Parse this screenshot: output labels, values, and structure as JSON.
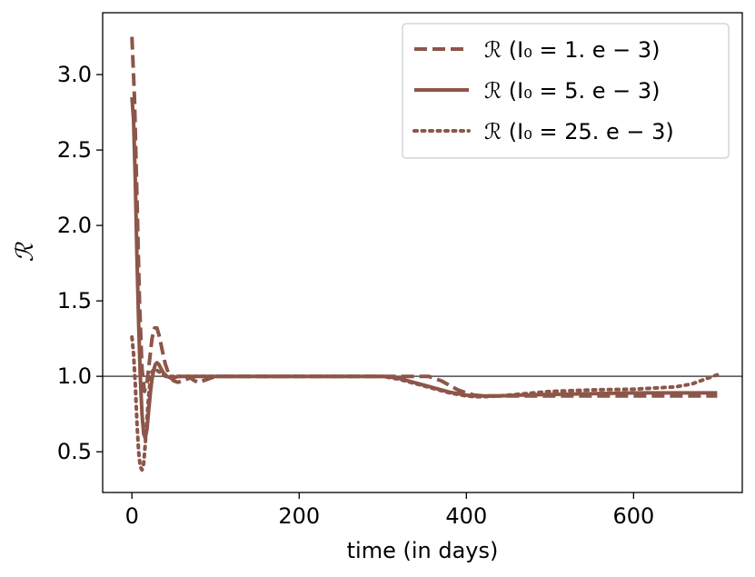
{
  "chart_data": {
    "type": "line",
    "xlabel": "time (in days)",
    "ylabel": "ℛ",
    "xlim": [
      -35,
      730
    ],
    "ylim": [
      0.23,
      3.41
    ],
    "xticks": [
      0,
      200,
      400,
      600
    ],
    "xtick_labels": [
      "0",
      "200",
      "400",
      "600"
    ],
    "yticks": [
      0.5,
      1.0,
      1.5,
      2.0,
      2.5,
      3.0
    ],
    "ytick_labels": [
      "0.5",
      "1.0",
      "1.5",
      "2.0",
      "2.5",
      "3.0"
    ],
    "reference_line": {
      "y": 1.0,
      "color": "#4d4d4d"
    },
    "grid": false,
    "legend_position": "top-right",
    "color": "#8c5649",
    "series": [
      {
        "name": "ℛ (I₀ = 1. e − 3)",
        "style": "dashed",
        "x": [
          0,
          3,
          6,
          9,
          12,
          15,
          18,
          21,
          24,
          27,
          30,
          33,
          36,
          40,
          45,
          50,
          55,
          60,
          65,
          70,
          75,
          80,
          90,
          100,
          120,
          150,
          200,
          250,
          300,
          320,
          330,
          340,
          350,
          355,
          360,
          370,
          380,
          390,
          400,
          410,
          420,
          430,
          440,
          460,
          500,
          550,
          600,
          650,
          700
        ],
        "y": [
          3.25,
          2.85,
          2.2,
          1.5,
          1.05,
          0.9,
          0.96,
          1.1,
          1.25,
          1.32,
          1.32,
          1.26,
          1.18,
          1.08,
          1.0,
          0.97,
          0.96,
          0.97,
          0.98,
          0.99,
          0.97,
          0.96,
          0.98,
          1.0,
          1.0,
          1.0,
          1.0,
          1.0,
          1.0,
          1.0,
          1.0,
          1.0,
          1.0,
          1.0,
          0.99,
          0.97,
          0.94,
          0.91,
          0.89,
          0.875,
          0.87,
          0.87,
          0.87,
          0.87,
          0.87,
          0.87,
          0.87,
          0.87,
          0.87
        ]
      },
      {
        "name": "ℛ (I₀ = 5. e − 3)",
        "style": "solid",
        "x": [
          0,
          2,
          4,
          6,
          8,
          10,
          12,
          14,
          16,
          18,
          20,
          22,
          24,
          26,
          28,
          30,
          32,
          35,
          38,
          42,
          46,
          50,
          55,
          60,
          70,
          80,
          100,
          150,
          200,
          250,
          300,
          310,
          320,
          330,
          340,
          350,
          360,
          370,
          380,
          390,
          400,
          410,
          420,
          430,
          440,
          460,
          500,
          550,
          600,
          650,
          700
        ],
        "y": [
          2.85,
          2.7,
          2.3,
          1.8,
          1.35,
          1.0,
          0.75,
          0.62,
          0.59,
          0.65,
          0.77,
          0.89,
          0.98,
          1.04,
          1.08,
          1.09,
          1.08,
          1.05,
          1.02,
          1.0,
          0.99,
          0.99,
          1.0,
          1.0,
          1.0,
          1.0,
          1.0,
          1.0,
          1.0,
          1.0,
          1.0,
          0.995,
          0.985,
          0.97,
          0.955,
          0.94,
          0.925,
          0.91,
          0.895,
          0.885,
          0.875,
          0.87,
          0.87,
          0.87,
          0.87,
          0.875,
          0.88,
          0.885,
          0.89,
          0.89,
          0.89
        ]
      },
      {
        "name": "ℛ (I₀ = 25. e − 3)",
        "style": "dotted",
        "x": [
          0,
          2,
          4,
          6,
          8,
          10,
          12,
          14,
          16,
          18,
          20,
          22,
          24,
          27,
          30,
          35,
          40,
          50,
          60,
          80,
          100,
          150,
          200,
          250,
          300,
          310,
          320,
          330,
          340,
          350,
          360,
          370,
          380,
          390,
          400,
          410,
          420,
          440,
          460,
          500,
          550,
          600,
          650,
          670,
          680,
          690,
          700
        ],
        "y": [
          1.26,
          1.15,
          0.95,
          0.7,
          0.5,
          0.4,
          0.38,
          0.42,
          0.55,
          0.72,
          0.87,
          0.98,
          1.03,
          1.05,
          1.04,
          1.02,
          1.0,
          1.0,
          1.0,
          1.0,
          1.0,
          1.0,
          1.0,
          1.0,
          1.0,
          0.99,
          0.98,
          0.965,
          0.95,
          0.935,
          0.92,
          0.905,
          0.89,
          0.88,
          0.87,
          0.865,
          0.865,
          0.87,
          0.88,
          0.9,
          0.91,
          0.915,
          0.93,
          0.95,
          0.97,
          0.99,
          1.01
        ]
      }
    ]
  }
}
